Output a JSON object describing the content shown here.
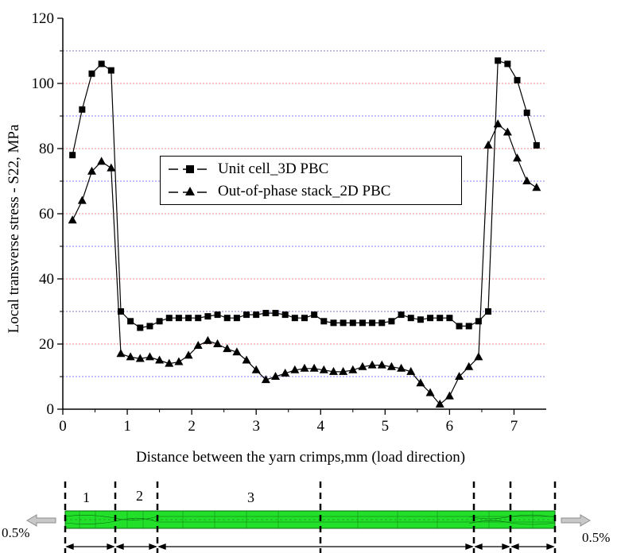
{
  "chart_data": {
    "type": "line",
    "xlabel": "Distance between the yarn crimps,mm (load direction)",
    "ylabel": "Local transverse stress - S22, MPa",
    "xlim": [
      0,
      7.5
    ],
    "ylim": [
      0,
      120
    ],
    "xticks": [
      "0",
      "1",
      "2",
      "3",
      "4",
      "5",
      "6",
      "7"
    ],
    "yticks": [
      "0",
      "20",
      "40",
      "60",
      "80",
      "100",
      "120"
    ],
    "grid": "horizontal dotted, alternating red and blue every 5 MPa",
    "legend_position": "upper-center",
    "series": [
      {
        "name": "Unit cell_3D PBC",
        "marker": "square",
        "x": [
          0.15,
          0.3,
          0.45,
          0.6,
          0.75,
          0.9,
          1.05,
          1.2,
          1.35,
          1.5,
          1.65,
          1.8,
          1.95,
          2.1,
          2.25,
          2.4,
          2.55,
          2.7,
          2.85,
          3.0,
          3.15,
          3.3,
          3.45,
          3.6,
          3.75,
          3.9,
          4.05,
          4.2,
          4.35,
          4.5,
          4.65,
          4.8,
          4.95,
          5.1,
          5.25,
          5.4,
          5.55,
          5.7,
          5.85,
          6.0,
          6.15,
          6.3,
          6.45,
          6.6,
          6.75,
          6.9,
          7.05,
          7.2,
          7.35
        ],
        "y": [
          78,
          92,
          103,
          106,
          104,
          30,
          27,
          25,
          25.5,
          27,
          28,
          28,
          28,
          28,
          28.5,
          29,
          28,
          28,
          29,
          29,
          29.5,
          29.5,
          29,
          28,
          28,
          29,
          27,
          26.5,
          26.5,
          26.5,
          26.5,
          26.5,
          26.5,
          27,
          29,
          28,
          27.5,
          28,
          28,
          28,
          25.5,
          25.5,
          27,
          30,
          107,
          106,
          101,
          91,
          81
        ]
      },
      {
        "name": "Out-of-phase stack_2D PBC",
        "marker": "triangle",
        "x": [
          0.15,
          0.3,
          0.45,
          0.6,
          0.75,
          0.9,
          1.05,
          1.2,
          1.35,
          1.5,
          1.65,
          1.8,
          1.95,
          2.1,
          2.25,
          2.4,
          2.55,
          2.7,
          2.85,
          3.0,
          3.15,
          3.3,
          3.45,
          3.6,
          3.75,
          3.9,
          4.05,
          4.2,
          4.35,
          4.5,
          4.65,
          4.8,
          4.95,
          5.1,
          5.25,
          5.4,
          5.55,
          5.7,
          5.85,
          6.0,
          6.15,
          6.3,
          6.45,
          6.6,
          6.75,
          6.9,
          7.05,
          7.2,
          7.35
        ],
        "y": [
          58,
          64,
          73,
          76,
          74,
          17,
          16,
          15.5,
          16,
          15,
          14,
          14.5,
          16.5,
          19.5,
          21,
          20,
          18.5,
          17.5,
          15,
          12,
          9,
          10,
          11,
          12,
          12.5,
          12.5,
          12,
          11.5,
          11.5,
          12,
          13,
          13.5,
          13.5,
          13,
          12.5,
          11.5,
          8,
          5,
          1.5,
          4,
          10,
          13,
          16,
          81,
          87.5,
          85,
          77,
          70,
          68
        ]
      }
    ]
  },
  "schematic": {
    "load_left": "0.5%",
    "load_right": "0.5%",
    "zones": [
      "1",
      "2",
      "3"
    ]
  },
  "colors": {
    "grid_red": "#e8888a",
    "grid_blue": "#7f7fe6",
    "specimen_green": "#22e02a",
    "arrow": "#8c8c8c"
  }
}
